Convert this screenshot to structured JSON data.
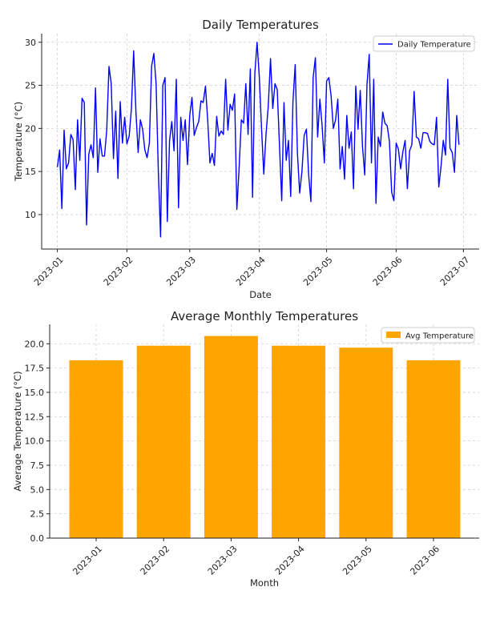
{
  "chart_data": [
    {
      "type": "line",
      "title": "Daily Temperatures",
      "xlabel": "Date",
      "ylabel": "Temperature (°C)",
      "x_range": [
        "2022-12-25",
        "2023-07-08"
      ],
      "ylim": [
        6,
        31
      ],
      "yticks": [
        10,
        15,
        20,
        25,
        30
      ],
      "xticks": [
        {
          "date": "2023-01-01",
          "label": "2023-01"
        },
        {
          "date": "2023-02-01",
          "label": "2023-02"
        },
        {
          "date": "2023-03-01",
          "label": "2023-03"
        },
        {
          "date": "2023-04-01",
          "label": "2023-04"
        },
        {
          "date": "2023-05-01",
          "label": "2023-05"
        },
        {
          "date": "2023-06-01",
          "label": "2023-06"
        },
        {
          "date": "2023-07-01",
          "label": "2023-07"
        }
      ],
      "grid": true,
      "legend": "top-right",
      "color": "#0000ff",
      "series": [
        {
          "name": "Daily Temperature",
          "start_date": "2023-01-01",
          "values": [
            15.5,
            17.5,
            10.7,
            19.8,
            15.3,
            16.0,
            19.3,
            18.7,
            12.9,
            21.0,
            16.3,
            23.5,
            23.0,
            8.8,
            17.0,
            18.1,
            16.6,
            24.7,
            14.9,
            18.8,
            16.8,
            16.8,
            19.8,
            27.2,
            25.2,
            16.5,
            22.0,
            14.2,
            23.1,
            18.3,
            21.3,
            18.2,
            19.1,
            22.3,
            29.0,
            22.0,
            17.2,
            21.0,
            19.9,
            17.5,
            16.6,
            18.3,
            27.2,
            28.7,
            25.2,
            15.0,
            7.4,
            25.0,
            25.9,
            9.2,
            18.6,
            20.8,
            17.4,
            25.7,
            10.8,
            21.3,
            18.6,
            21.0,
            15.8,
            21.5,
            23.6,
            19.2,
            20.1,
            20.8,
            23.2,
            23.0,
            24.9,
            21.0,
            16.0,
            17.1,
            15.7,
            21.4,
            19.1,
            19.7,
            19.3,
            25.7,
            19.8,
            22.8,
            22.1,
            24.0,
            10.6,
            15.4,
            21.0,
            20.6,
            25.2,
            19.3,
            26.9,
            12.0,
            26.3,
            30.0,
            26.0,
            20.0,
            14.7,
            19.3,
            22.6,
            28.1,
            22.3,
            25.2,
            24.5,
            18.0,
            11.6,
            23.0,
            16.3,
            18.6,
            12.1,
            23.1,
            27.4,
            17.1,
            12.5,
            15.0,
            19.2,
            19.9,
            14.6,
            11.5,
            25.9,
            28.2,
            19.0,
            23.4,
            20.3,
            16.0,
            25.5,
            25.9,
            23.8,
            20.0,
            21.0,
            23.4,
            15.3,
            17.9,
            14.1,
            21.5,
            17.7,
            19.6,
            13.0,
            24.9,
            19.9,
            24.4,
            17.9,
            14.6,
            25.1,
            28.6,
            16.0,
            25.7,
            11.3,
            19.0,
            17.9,
            21.9,
            20.6,
            20.3,
            18.5,
            12.6,
            11.6,
            18.3,
            17.6,
            15.3,
            17.3,
            18.6,
            13.0,
            17.4,
            18.1,
            24.3,
            19.0,
            18.8,
            17.7,
            19.5,
            19.5,
            19.4,
            18.5,
            18.2,
            18.1,
            21.3,
            13.2,
            15.6,
            18.6,
            16.9,
            25.7,
            17.7,
            17.2,
            14.9,
            21.5,
            18.1
          ]
        }
      ]
    },
    {
      "type": "bar",
      "title": "Average Monthly Temperatures",
      "xlabel": "Month",
      "ylabel": "Average Temperature (°C)",
      "categories": [
        "2023-01",
        "2023-02",
        "2023-03",
        "2023-04",
        "2023-05",
        "2023-06"
      ],
      "ylim": [
        0,
        22
      ],
      "yticks": [
        "0.0",
        "2.5",
        "5.0",
        "7.5",
        "10.0",
        "12.5",
        "15.0",
        "17.5",
        "20.0"
      ],
      "grid": true,
      "legend": "top-right",
      "color": "#ffa500",
      "series": [
        {
          "name": "Avg Temperature",
          "values": [
            18.3,
            19.8,
            20.8,
            19.8,
            19.6,
            18.3
          ]
        }
      ]
    }
  ]
}
